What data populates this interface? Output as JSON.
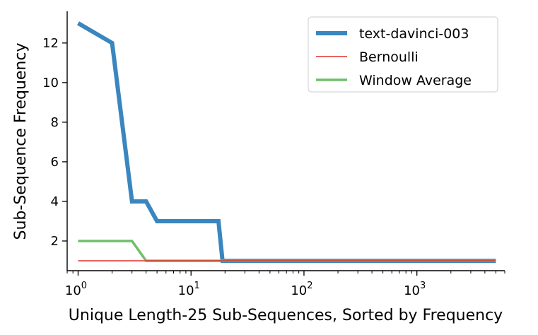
{
  "chart_data": {
    "type": "line",
    "xlabel": "Unique Length-25 Sub-Sequences, Sorted by Frequency",
    "ylabel": "Sub-Sequence Frequency",
    "xscale": "log",
    "xlim": [
      0.8,
      6000
    ],
    "ylim": [
      0.5,
      13.6
    ],
    "x_ticks": [
      1,
      10,
      100,
      1000
    ],
    "x_tick_labels": [
      {
        "base": "10",
        "exp": "0"
      },
      {
        "base": "10",
        "exp": "1"
      },
      {
        "base": "10",
        "exp": "2"
      },
      {
        "base": "10",
        "exp": "3"
      }
    ],
    "y_ticks": [
      2,
      4,
      6,
      8,
      10,
      12
    ],
    "y_tick_labels": [
      "2",
      "4",
      "6",
      "8",
      "10",
      "12"
    ],
    "grid": false,
    "legend_position": "top-right",
    "series": [
      {
        "name": "text-davinci-003",
        "color": "#3a86bf",
        "style": "thick",
        "points": [
          [
            1,
            13
          ],
          [
            2,
            12
          ],
          [
            3,
            4
          ],
          [
            4,
            4
          ],
          [
            5,
            3
          ],
          [
            6,
            3
          ],
          [
            10,
            3
          ],
          [
            17.5,
            3
          ],
          [
            19,
            1
          ],
          [
            5000,
            1
          ]
        ]
      },
      {
        "name": "Bernoulli",
        "color": "#e0312a",
        "style": "thin",
        "points": [
          [
            1,
            1
          ],
          [
            5000,
            1
          ]
        ]
      },
      {
        "name": "Window Average",
        "color": "#6fbf6a",
        "style": "medium",
        "points": [
          [
            1,
            2
          ],
          [
            3,
            2
          ],
          [
            4,
            1
          ],
          [
            5000,
            1
          ]
        ]
      }
    ]
  }
}
